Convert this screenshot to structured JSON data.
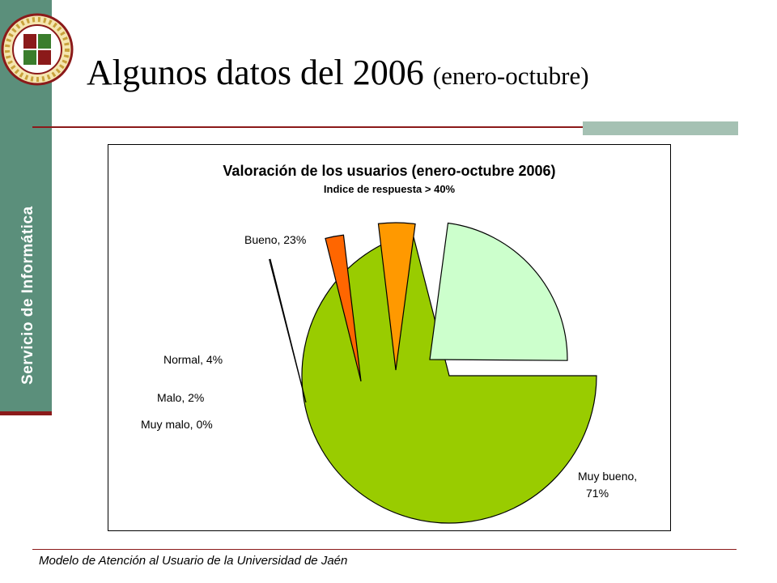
{
  "sidebar": {
    "label": "Servicio de Informática"
  },
  "slide": {
    "title_main": "Algunos datos del 2006",
    "title_sub": "(enero-octubre)"
  },
  "footer": {
    "text": "Modelo de Atención al Usuario de la Universidad de Jaén"
  },
  "colors": {
    "sidebar": "#5b8f7b",
    "rule": "#8b1a1a",
    "accent": "#a5c1b3"
  },
  "chart_data": {
    "type": "pie",
    "title": "Valoración de los usuarios (enero-octubre 2006)",
    "subtitle": "Indice de respuesta > 40%",
    "exploded": true,
    "slices": [
      {
        "label": "Muy bueno",
        "value": 71,
        "display": "Muy bueno,",
        "display2": "71%",
        "color": "#99cc00"
      },
      {
        "label": "Muy malo",
        "value": 0,
        "display": "Muy malo, 0%",
        "color": "#ffffff"
      },
      {
        "label": "Malo",
        "value": 2,
        "display": "Malo, 2%",
        "color": "#ff6600"
      },
      {
        "label": "Normal",
        "value": 4,
        "display": "Normal, 4%",
        "color": "#ff9900"
      },
      {
        "label": "Bueno",
        "value": 23,
        "display": "Bueno, 23%",
        "color": "#ccffcc"
      }
    ]
  }
}
